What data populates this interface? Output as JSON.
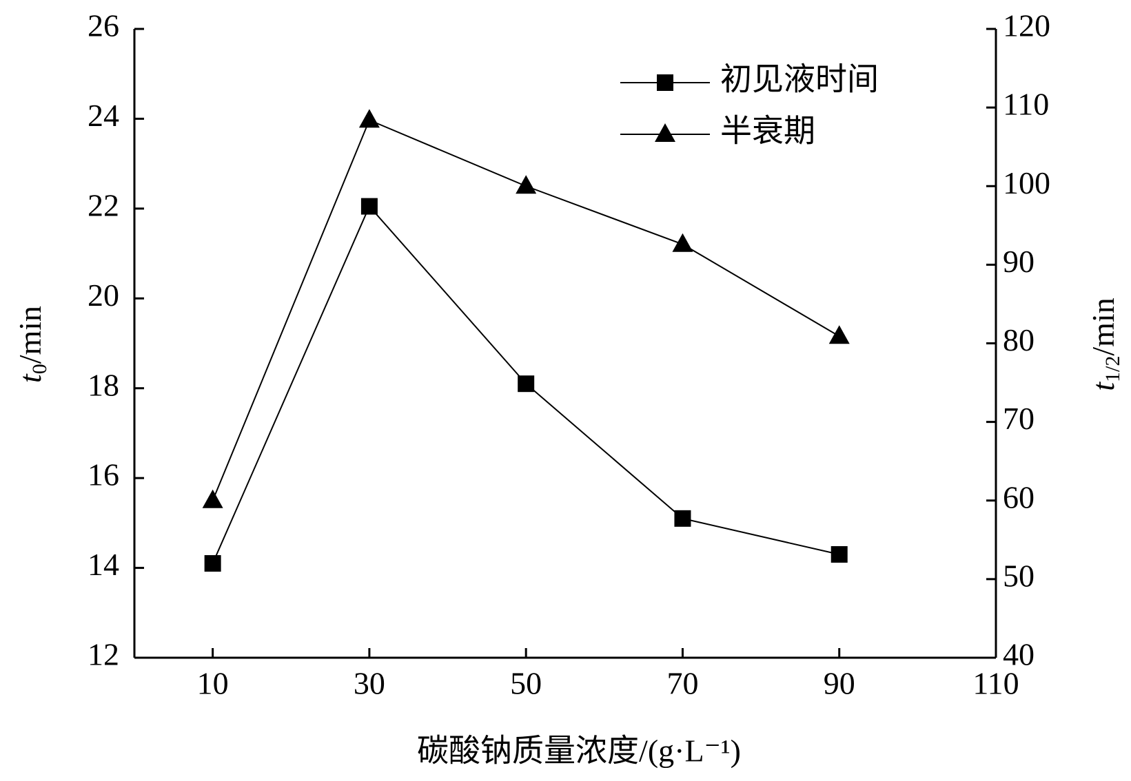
{
  "chart_data": {
    "type": "line",
    "x": [
      10,
      30,
      50,
      70,
      90
    ],
    "xlim": [
      0,
      110
    ],
    "xticks": [
      10,
      30,
      50,
      70,
      90,
      110
    ],
    "ylim": [
      12,
      26
    ],
    "yticks": [
      12,
      14,
      16,
      18,
      20,
      22,
      24,
      26
    ],
    "y2lim": [
      40,
      120
    ],
    "y2ticks": [
      40,
      50,
      60,
      70,
      80,
      90,
      100,
      110,
      120
    ],
    "xlabel": "碳酸钠质量浓度/(g·L⁻¹)",
    "ylabel_parts": [
      "t",
      "0",
      "/min"
    ],
    "y2label_parts": [
      "t",
      "1/2",
      "/min"
    ],
    "legend": "upper right",
    "series": [
      {
        "name": "初见液时间",
        "color": "#000000",
        "marker": "square",
        "values": [
          14.1,
          22.05,
          18.1,
          15.1,
          14.3
        ]
      },
      {
        "name": "半衰期",
        "color": "#000000",
        "marker": "triangle",
        "axis": "y2",
        "values": [
          60,
          108.4,
          100,
          92.6,
          80.9
        ]
      }
    ]
  }
}
